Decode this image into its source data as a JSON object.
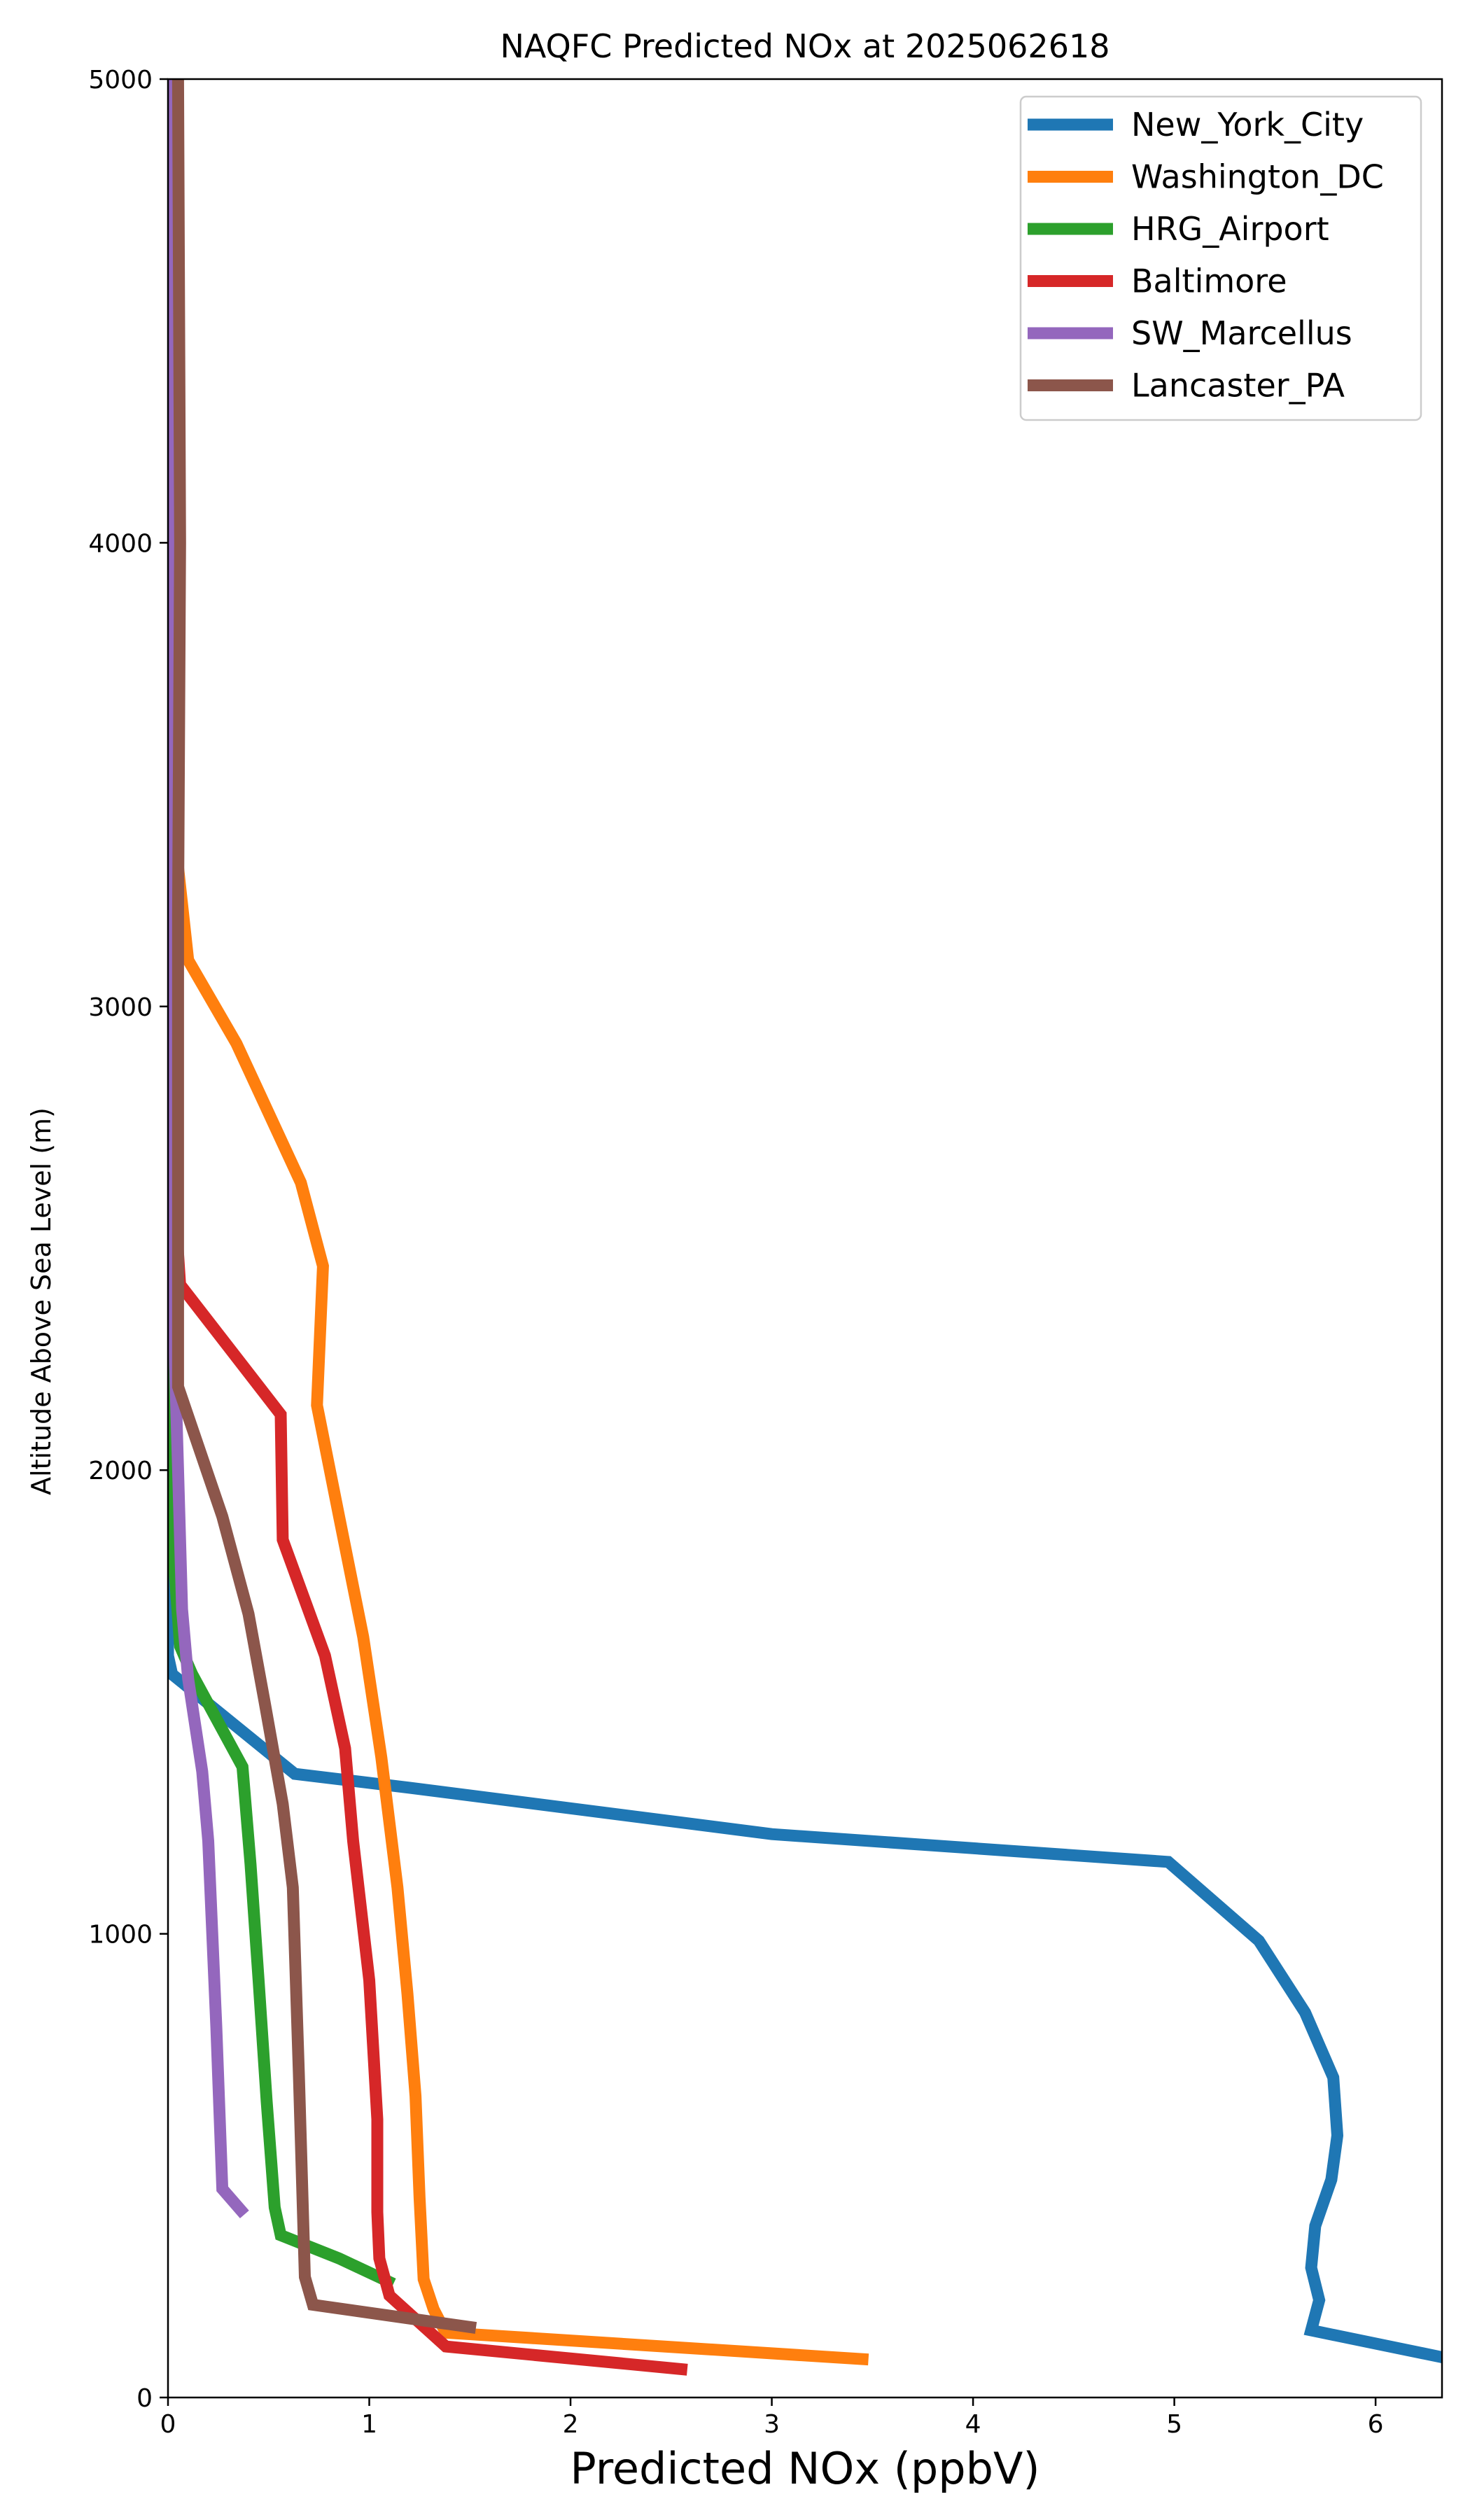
{
  "chart_data": {
    "type": "line",
    "title": "NAQFC Predicted NOx at 2025062618",
    "xlabel": "Predicted NOx (ppbV)",
    "ylabel": "Altitude Above Sea Level (m)",
    "xlim": [
      0,
      6.33
    ],
    "ylim": [
      0,
      5000
    ],
    "x_ticks": [
      0,
      1,
      2,
      3,
      4,
      5,
      6
    ],
    "y_ticks": [
      0,
      1000,
      2000,
      3000,
      4000,
      5000
    ],
    "grid": false,
    "legend_position": "top-right",
    "series": [
      {
        "name": "New_York_City",
        "color": "#1f77b4",
        "points": [
          [
            6.35,
            85
          ],
          [
            5.68,
            145
          ],
          [
            5.72,
            210
          ],
          [
            5.68,
            280
          ],
          [
            5.7,
            370
          ],
          [
            5.78,
            470
          ],
          [
            5.81,
            565
          ],
          [
            5.79,
            690
          ],
          [
            5.65,
            830
          ],
          [
            5.42,
            985
          ],
          [
            4.97,
            1155
          ],
          [
            3.0,
            1215
          ],
          [
            1.2,
            1315
          ],
          [
            0.63,
            1345
          ],
          [
            0.02,
            1560
          ],
          [
            0.0,
            1600
          ],
          [
            0.0,
            5000
          ]
        ]
      },
      {
        "name": "Washington_DC",
        "color": "#ff7f0e",
        "points": [
          [
            3.48,
            82
          ],
          [
            1.38,
            140
          ],
          [
            1.32,
            190
          ],
          [
            1.27,
            255
          ],
          [
            1.25,
            430
          ],
          [
            1.23,
            650
          ],
          [
            1.19,
            870
          ],
          [
            1.14,
            1100
          ],
          [
            1.06,
            1380
          ],
          [
            0.97,
            1640
          ],
          [
            0.85,
            1900
          ],
          [
            0.74,
            2140
          ],
          [
            0.77,
            2440
          ],
          [
            0.66,
            2620
          ],
          [
            0.34,
            2920
          ],
          [
            0.1,
            3100
          ],
          [
            0.05,
            3300
          ],
          [
            0.03,
            4000
          ],
          [
            0.02,
            5000
          ]
        ]
      },
      {
        "name": "HRG_Airport",
        "color": "#2ca02c",
        "points": [
          [
            1.12,
            245
          ],
          [
            0.85,
            300
          ],
          [
            0.56,
            350
          ],
          [
            0.53,
            410
          ],
          [
            0.49,
            640
          ],
          [
            0.45,
            900
          ],
          [
            0.41,
            1150
          ],
          [
            0.37,
            1360
          ],
          [
            0.12,
            1560
          ],
          [
            0.06,
            1620
          ],
          [
            0.03,
            1800
          ],
          [
            0.02,
            5000
          ]
        ]
      },
      {
        "name": "Baltimore",
        "color": "#d62728",
        "points": [
          [
            2.58,
            60
          ],
          [
            1.38,
            110
          ],
          [
            1.1,
            220
          ],
          [
            1.05,
            300
          ],
          [
            1.04,
            400
          ],
          [
            1.04,
            600
          ],
          [
            1.0,
            900
          ],
          [
            0.92,
            1200
          ],
          [
            0.88,
            1400
          ],
          [
            0.78,
            1600
          ],
          [
            0.57,
            1850
          ],
          [
            0.56,
            2120
          ],
          [
            0.06,
            2400
          ],
          [
            0.03,
            2600
          ],
          [
            0.02,
            5000
          ]
        ]
      },
      {
        "name": "SW_Marcellus",
        "color": "#9467bd",
        "points": [
          [
            0.38,
            395
          ],
          [
            0.27,
            450
          ],
          [
            0.24,
            800
          ],
          [
            0.2,
            1200
          ],
          [
            0.17,
            1350
          ],
          [
            0.1,
            1550
          ],
          [
            0.07,
            1700
          ],
          [
            0.05,
            2000
          ],
          [
            0.03,
            2300
          ],
          [
            0.02,
            5000
          ]
        ]
      },
      {
        "name": "Lancaster_PA",
        "color": "#8c564b",
        "points": [
          [
            1.53,
            150
          ],
          [
            0.72,
            200
          ],
          [
            0.68,
            260
          ],
          [
            0.65,
            700
          ],
          [
            0.62,
            1100
          ],
          [
            0.57,
            1280
          ],
          [
            0.48,
            1500
          ],
          [
            0.4,
            1690
          ],
          [
            0.27,
            1900
          ],
          [
            0.05,
            2180
          ],
          [
            0.05,
            3200
          ],
          [
            0.06,
            4000
          ],
          [
            0.05,
            5000
          ]
        ]
      }
    ]
  }
}
